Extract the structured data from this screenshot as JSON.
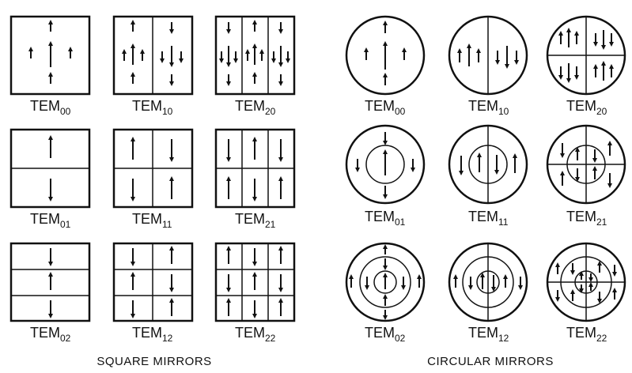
{
  "left_caption": "SQUARE MIRRORS",
  "right_caption": "CIRCULAR MIRRORS",
  "square_modes": [
    {
      "name": "TEM",
      "sub": "00"
    },
    {
      "name": "TEM",
      "sub": "10"
    },
    {
      "name": "TEM",
      "sub": "20"
    },
    {
      "name": "TEM",
      "sub": "01"
    },
    {
      "name": "TEM",
      "sub": "11"
    },
    {
      "name": "TEM",
      "sub": "21"
    },
    {
      "name": "TEM",
      "sub": "02"
    },
    {
      "name": "TEM",
      "sub": "12"
    },
    {
      "name": "TEM",
      "sub": "22"
    }
  ],
  "circular_modes": [
    {
      "name": "TEM",
      "sub": "00"
    },
    {
      "name": "TEM",
      "sub": "10"
    },
    {
      "name": "TEM",
      "sub": "20"
    },
    {
      "name": "TEM",
      "sub": "01"
    },
    {
      "name": "TEM",
      "sub": "11"
    },
    {
      "name": "TEM",
      "sub": "21"
    },
    {
      "name": "TEM",
      "sub": "02"
    },
    {
      "name": "TEM",
      "sub": "12"
    },
    {
      "name": "TEM",
      "sub": "22"
    }
  ]
}
